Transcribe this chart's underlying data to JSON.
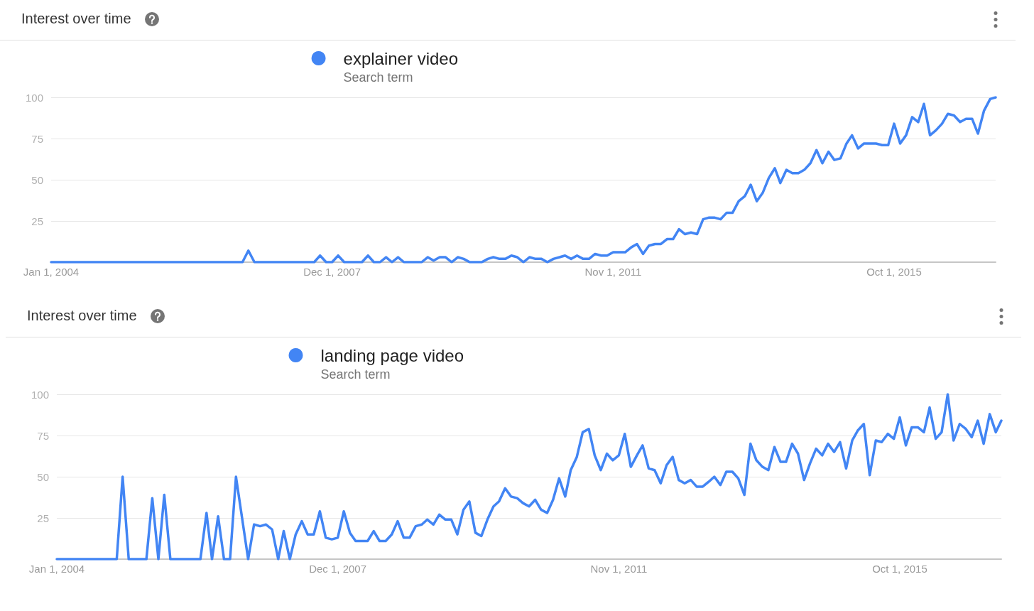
{
  "chart_data": [
    {
      "type": "line",
      "title": "Interest over time",
      "legend_title": "Search term",
      "legend": "top",
      "grid": "y",
      "marker": "none",
      "x": [
        "2004-01",
        "2006-09",
        "2006-10",
        "2006-11",
        "2007-09",
        "2007-10",
        "2007-11",
        "2007-12",
        "2008-01",
        "2008-02",
        "2008-05",
        "2008-06",
        "2008-07",
        "2008-08",
        "2008-09",
        "2008-10",
        "2008-11",
        "2008-12",
        "2009-03",
        "2009-04",
        "2009-05",
        "2009-06",
        "2009-07",
        "2009-08",
        "2009-09",
        "2009-10",
        "2009-11",
        "2010-01",
        "2010-02",
        "2010-03",
        "2010-04",
        "2010-05",
        "2010-06",
        "2010-07",
        "2010-08",
        "2010-09",
        "2010-10",
        "2010-11",
        "2010-12",
        "2011-01",
        "2011-02",
        "2011-03",
        "2011-04",
        "2011-05",
        "2011-06",
        "2011-07",
        "2011-08",
        "2011-09",
        "2011-10",
        "2011-11",
        "2011-12",
        "2012-01",
        "2012-02",
        "2012-03",
        "2012-04",
        "2012-05",
        "2012-06",
        "2012-07",
        "2012-08",
        "2012-09",
        "2012-10",
        "2012-11",
        "2012-12",
        "2013-01",
        "2013-02",
        "2013-03",
        "2013-04",
        "2013-05",
        "2013-06",
        "2013-07",
        "2013-08",
        "2013-09",
        "2013-10",
        "2013-11",
        "2013-12",
        "2014-01",
        "2014-02",
        "2014-03",
        "2014-04",
        "2014-05",
        "2014-06",
        "2014-07",
        "2014-08",
        "2014-09",
        "2014-10",
        "2014-11",
        "2014-12",
        "2015-01",
        "2015-02",
        "2015-03",
        "2015-04",
        "2015-05",
        "2015-06",
        "2015-07",
        "2015-08",
        "2015-09",
        "2015-10",
        "2015-11",
        "2015-12",
        "2016-01",
        "2016-02",
        "2016-03",
        "2016-04",
        "2016-05",
        "2016-06",
        "2016-07",
        "2016-08",
        "2016-09",
        "2016-10",
        "2016-11",
        "2016-12",
        "2017-01",
        "2017-02",
        "2017-03"
      ],
      "series": [
        {
          "name": "explainer video",
          "color": "#4285f4",
          "values": [
            0,
            0,
            7,
            0,
            0,
            4,
            0,
            0,
            4,
            0,
            0,
            4,
            0,
            0,
            3,
            0,
            3,
            0,
            0,
            3,
            1,
            3,
            3,
            0,
            3,
            2,
            0,
            0,
            2,
            3,
            2,
            2,
            4,
            3,
            0,
            3,
            2,
            2,
            0,
            2,
            3,
            4,
            2,
            4,
            2,
            2,
            5,
            4,
            4,
            6,
            6,
            6,
            9,
            11,
            5,
            10,
            11,
            11,
            14,
            14,
            20,
            17,
            18,
            17,
            26,
            27,
            27,
            26,
            30,
            30,
            37,
            40,
            47,
            37,
            42,
            51,
            57,
            48,
            56,
            54,
            54,
            56,
            60,
            68,
            60,
            67,
            62,
            63,
            72,
            77,
            69,
            72,
            72,
            72,
            71,
            71,
            84,
            72,
            77,
            88,
            85,
            96,
            77,
            80,
            84,
            90,
            89,
            85,
            87,
            87,
            78,
            92,
            99,
            100
          ]
        }
      ],
      "xlim": [
        "2004-01",
        "2017-03"
      ],
      "xticks": [
        {
          "value": "2004-01-01",
          "label": "Jan 1, 2004"
        },
        {
          "value": "2007-12-01",
          "label": "Dec 1, 2007"
        },
        {
          "value": "2011-11-01",
          "label": "Nov 1, 2011"
        },
        {
          "value": "2015-10-01",
          "label": "Oct 1, 2015"
        }
      ],
      "ylim": [
        0,
        100
      ],
      "yticks": [
        25,
        50,
        75,
        100
      ]
    },
    {
      "type": "line",
      "title": "Interest over time",
      "legend_title": "Search term",
      "legend": "top",
      "grid": "y",
      "marker": "none",
      "x": [
        "2004-01",
        "2004-11",
        "2004-12",
        "2005-01",
        "2005-04",
        "2005-05",
        "2005-06",
        "2005-07",
        "2005-08",
        "2006-01",
        "2006-02",
        "2006-03",
        "2006-04",
        "2006-05",
        "2006-06",
        "2006-07",
        "2006-08",
        "2006-09",
        "2006-10",
        "2006-11",
        "2006-12",
        "2007-01",
        "2007-02",
        "2007-03",
        "2007-04",
        "2007-05",
        "2007-06",
        "2007-07",
        "2007-08",
        "2007-09",
        "2007-10",
        "2007-11",
        "2007-12",
        "2008-01",
        "2008-02",
        "2008-03",
        "2008-04",
        "2008-05",
        "2008-06",
        "2008-07",
        "2008-08",
        "2008-09",
        "2008-10",
        "2008-11",
        "2008-12",
        "2009-01",
        "2009-02",
        "2009-03",
        "2009-04",
        "2009-05",
        "2009-06",
        "2009-07",
        "2009-08",
        "2009-09",
        "2009-10",
        "2009-11",
        "2009-12",
        "2010-01",
        "2010-02",
        "2010-03",
        "2010-04",
        "2010-05",
        "2010-06",
        "2010-07",
        "2010-08",
        "2010-09",
        "2010-10",
        "2010-11",
        "2010-12",
        "2011-01",
        "2011-02",
        "2011-03",
        "2011-04",
        "2011-05",
        "2011-06",
        "2011-07",
        "2011-08",
        "2011-09",
        "2011-10",
        "2011-11",
        "2011-12",
        "2012-01",
        "2012-02",
        "2012-03",
        "2012-04",
        "2012-05",
        "2012-06",
        "2012-07",
        "2012-08",
        "2012-09",
        "2012-10",
        "2012-11",
        "2012-12",
        "2013-01",
        "2013-02",
        "2013-03",
        "2013-04",
        "2013-05",
        "2013-06",
        "2013-07",
        "2013-08",
        "2013-09",
        "2013-10",
        "2013-11",
        "2013-12",
        "2014-01",
        "2014-02",
        "2014-03",
        "2014-04",
        "2014-05",
        "2014-06",
        "2014-07",
        "2014-08",
        "2014-09",
        "2014-10",
        "2014-11",
        "2014-12",
        "2015-01",
        "2015-02",
        "2015-03",
        "2015-04",
        "2015-05",
        "2015-06",
        "2015-07",
        "2015-08",
        "2015-09",
        "2015-10",
        "2015-11",
        "2015-12",
        "2016-01",
        "2016-02",
        "2016-03",
        "2016-04",
        "2016-05",
        "2016-06",
        "2016-07",
        "2016-08",
        "2016-09",
        "2016-10",
        "2016-11",
        "2016-12",
        "2017-01",
        "2017-02",
        "2017-03"
      ],
      "series": [
        {
          "name": "landing page video",
          "color": "#4285f4",
          "values": [
            0,
            0,
            50,
            0,
            0,
            37,
            0,
            39,
            0,
            0,
            28,
            0,
            26,
            0,
            0,
            50,
            25,
            0,
            21,
            20,
            21,
            18,
            0,
            17,
            0,
            15,
            23,
            15,
            15,
            29,
            13,
            12,
            13,
            29,
            16,
            11,
            11,
            11,
            17,
            11,
            11,
            15,
            23,
            13,
            13,
            20,
            21,
            24,
            21,
            27,
            24,
            24,
            15,
            30,
            35,
            16,
            14,
            24,
            32,
            35,
            43,
            38,
            37,
            34,
            32,
            36,
            30,
            28,
            36,
            49,
            38,
            54,
            62,
            77,
            79,
            63,
            54,
            64,
            60,
            63,
            76,
            56,
            63,
            69,
            55,
            54,
            46,
            57,
            62,
            48,
            46,
            48,
            44,
            44,
            47,
            50,
            45,
            53,
            53,
            49,
            39,
            70,
            60,
            56,
            54,
            68,
            59,
            59,
            70,
            64,
            48,
            58,
            67,
            63,
            70,
            65,
            71,
            55,
            72,
            78,
            82,
            51,
            72,
            71,
            76,
            73,
            86,
            69,
            80,
            80,
            77,
            92,
            73,
            77,
            100,
            72,
            82,
            79,
            74,
            84,
            70,
            88,
            77,
            84
          ]
        }
      ],
      "xlim": [
        "2004-01",
        "2017-03"
      ],
      "xticks": [
        {
          "value": "2004-01-01",
          "label": "Jan 1, 2004"
        },
        {
          "value": "2007-12-01",
          "label": "Dec 1, 2007"
        },
        {
          "value": "2011-11-01",
          "label": "Nov 1, 2011"
        },
        {
          "value": "2015-10-01",
          "label": "Oct 1, 2015"
        }
      ],
      "ylim": [
        0,
        100
      ],
      "yticks": [
        25,
        50,
        75,
        100
      ]
    }
  ]
}
